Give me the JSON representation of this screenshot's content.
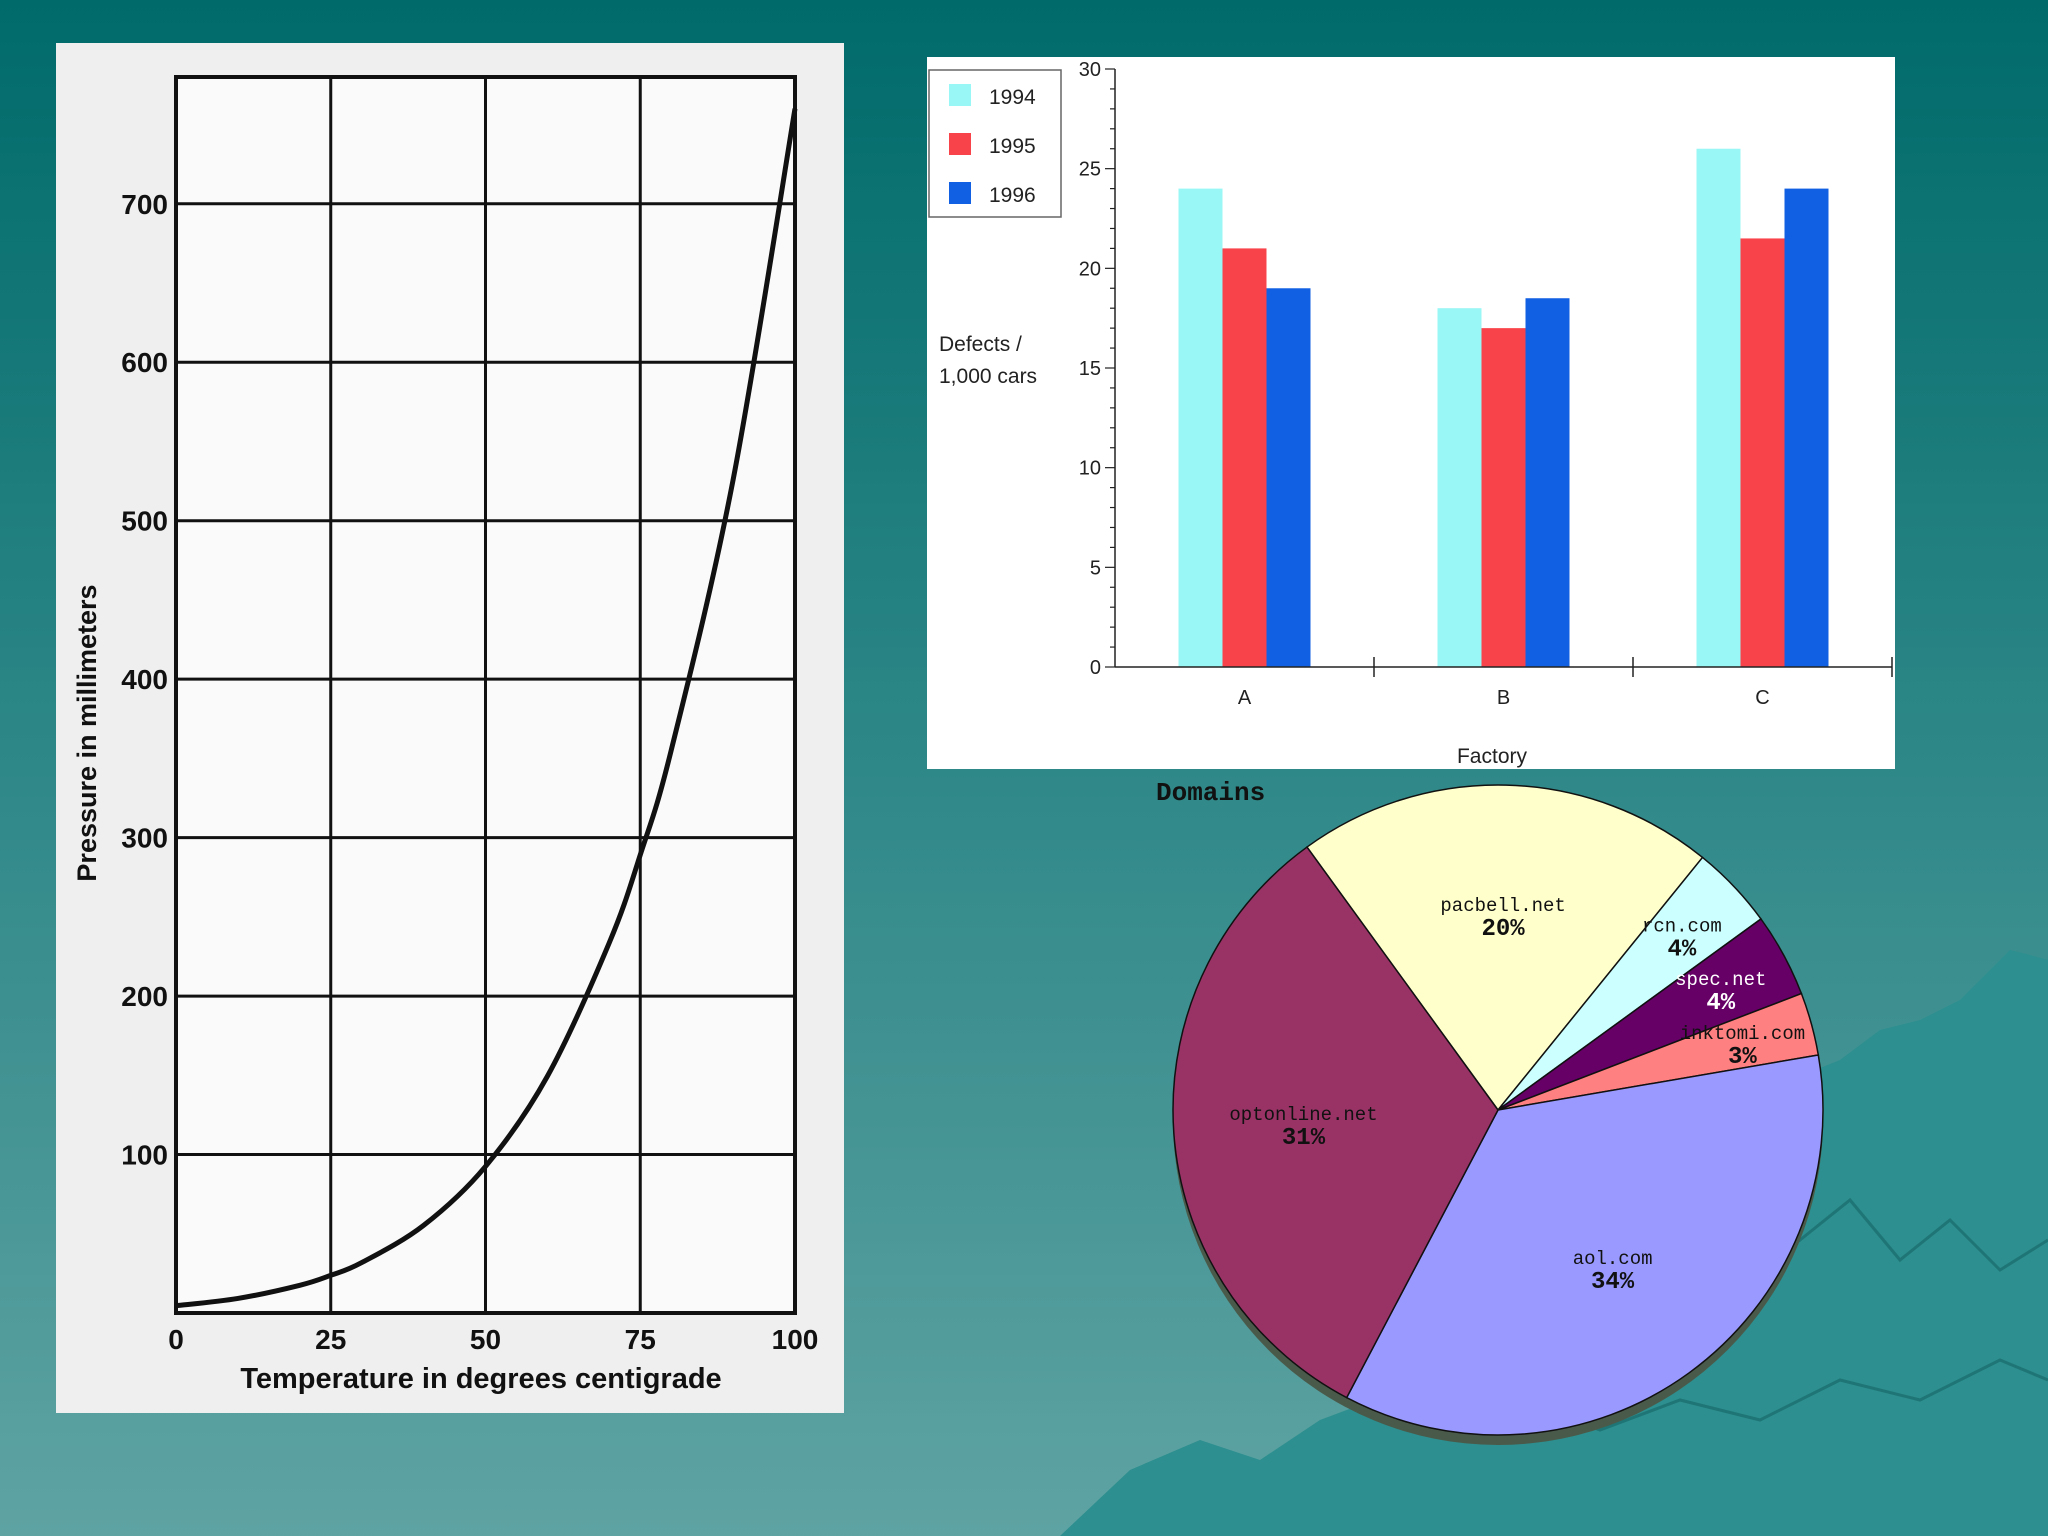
{
  "colors": {
    "background_top": "#006a6a",
    "background_bottom": "#5fa3a3",
    "mountain": "#2d8f8f",
    "ink": "#111111",
    "color_1994": "#99f7f5",
    "color_1995": "#f9434b",
    "color_1996": "#1160e3"
  },
  "chart_data": [
    {
      "type": "line",
      "title": "",
      "xlabel": "Temperature in degrees centigrade",
      "ylabel": "Pressure in millimeters",
      "xlim": [
        0,
        100
      ],
      "ylim": [
        0,
        780
      ],
      "x_ticks": [
        0,
        25,
        50,
        75,
        100
      ],
      "y_ticks": [
        100,
        200,
        300,
        400,
        500,
        600,
        700
      ],
      "grid": true,
      "series": [
        {
          "x": [
            0,
            10,
            20,
            25,
            30,
            40,
            50,
            60,
            70,
            75,
            80,
            90,
            100
          ],
          "y": [
            4.6,
            9.2,
            17.5,
            23.8,
            31.8,
            55.3,
            92.5,
            149.4,
            233.7,
            289.1,
            355.1,
            525.8,
            760
          ]
        }
      ]
    },
    {
      "type": "bar",
      "title": "",
      "xlabel": "Factory",
      "ylabel": "Defects / 1,000 cars",
      "ylabel_lines": [
        "Defects /",
        "1,000 cars"
      ],
      "categories": [
        "A",
        "B",
        "C"
      ],
      "ylim": [
        0,
        30
      ],
      "y_ticks": [
        0,
        5,
        10,
        15,
        20,
        25,
        30
      ],
      "legend_position": "top-left",
      "series": [
        {
          "name": "1994",
          "values": [
            24,
            18,
            26
          ],
          "color": "#99f7f5"
        },
        {
          "name": "1995",
          "values": [
            21,
            17,
            21.5
          ],
          "color": "#f9434b"
        },
        {
          "name": "1996",
          "values": [
            19,
            18.5,
            24
          ],
          "color": "#1160e3"
        }
      ]
    },
    {
      "type": "pie",
      "title": "Domains",
      "slices": [
        {
          "label": "pacbell.net",
          "value": 20,
          "display": "20%",
          "color": "#ffffcc"
        },
        {
          "label": "rcn.com",
          "value": 4,
          "display": "4%",
          "color": "#ccffff"
        },
        {
          "label": "spec.net",
          "value": 4,
          "display": "4%",
          "color": "#660066"
        },
        {
          "label": "inktomi.com",
          "value": 3,
          "display": "3%",
          "color": "#ff8080"
        },
        {
          "label": "aol.com",
          "value": 34,
          "display": "34%",
          "color": "#9999ff"
        },
        {
          "label": "optonline.net",
          "value": 31,
          "display": "31%",
          "color": "#993366"
        }
      ]
    }
  ]
}
